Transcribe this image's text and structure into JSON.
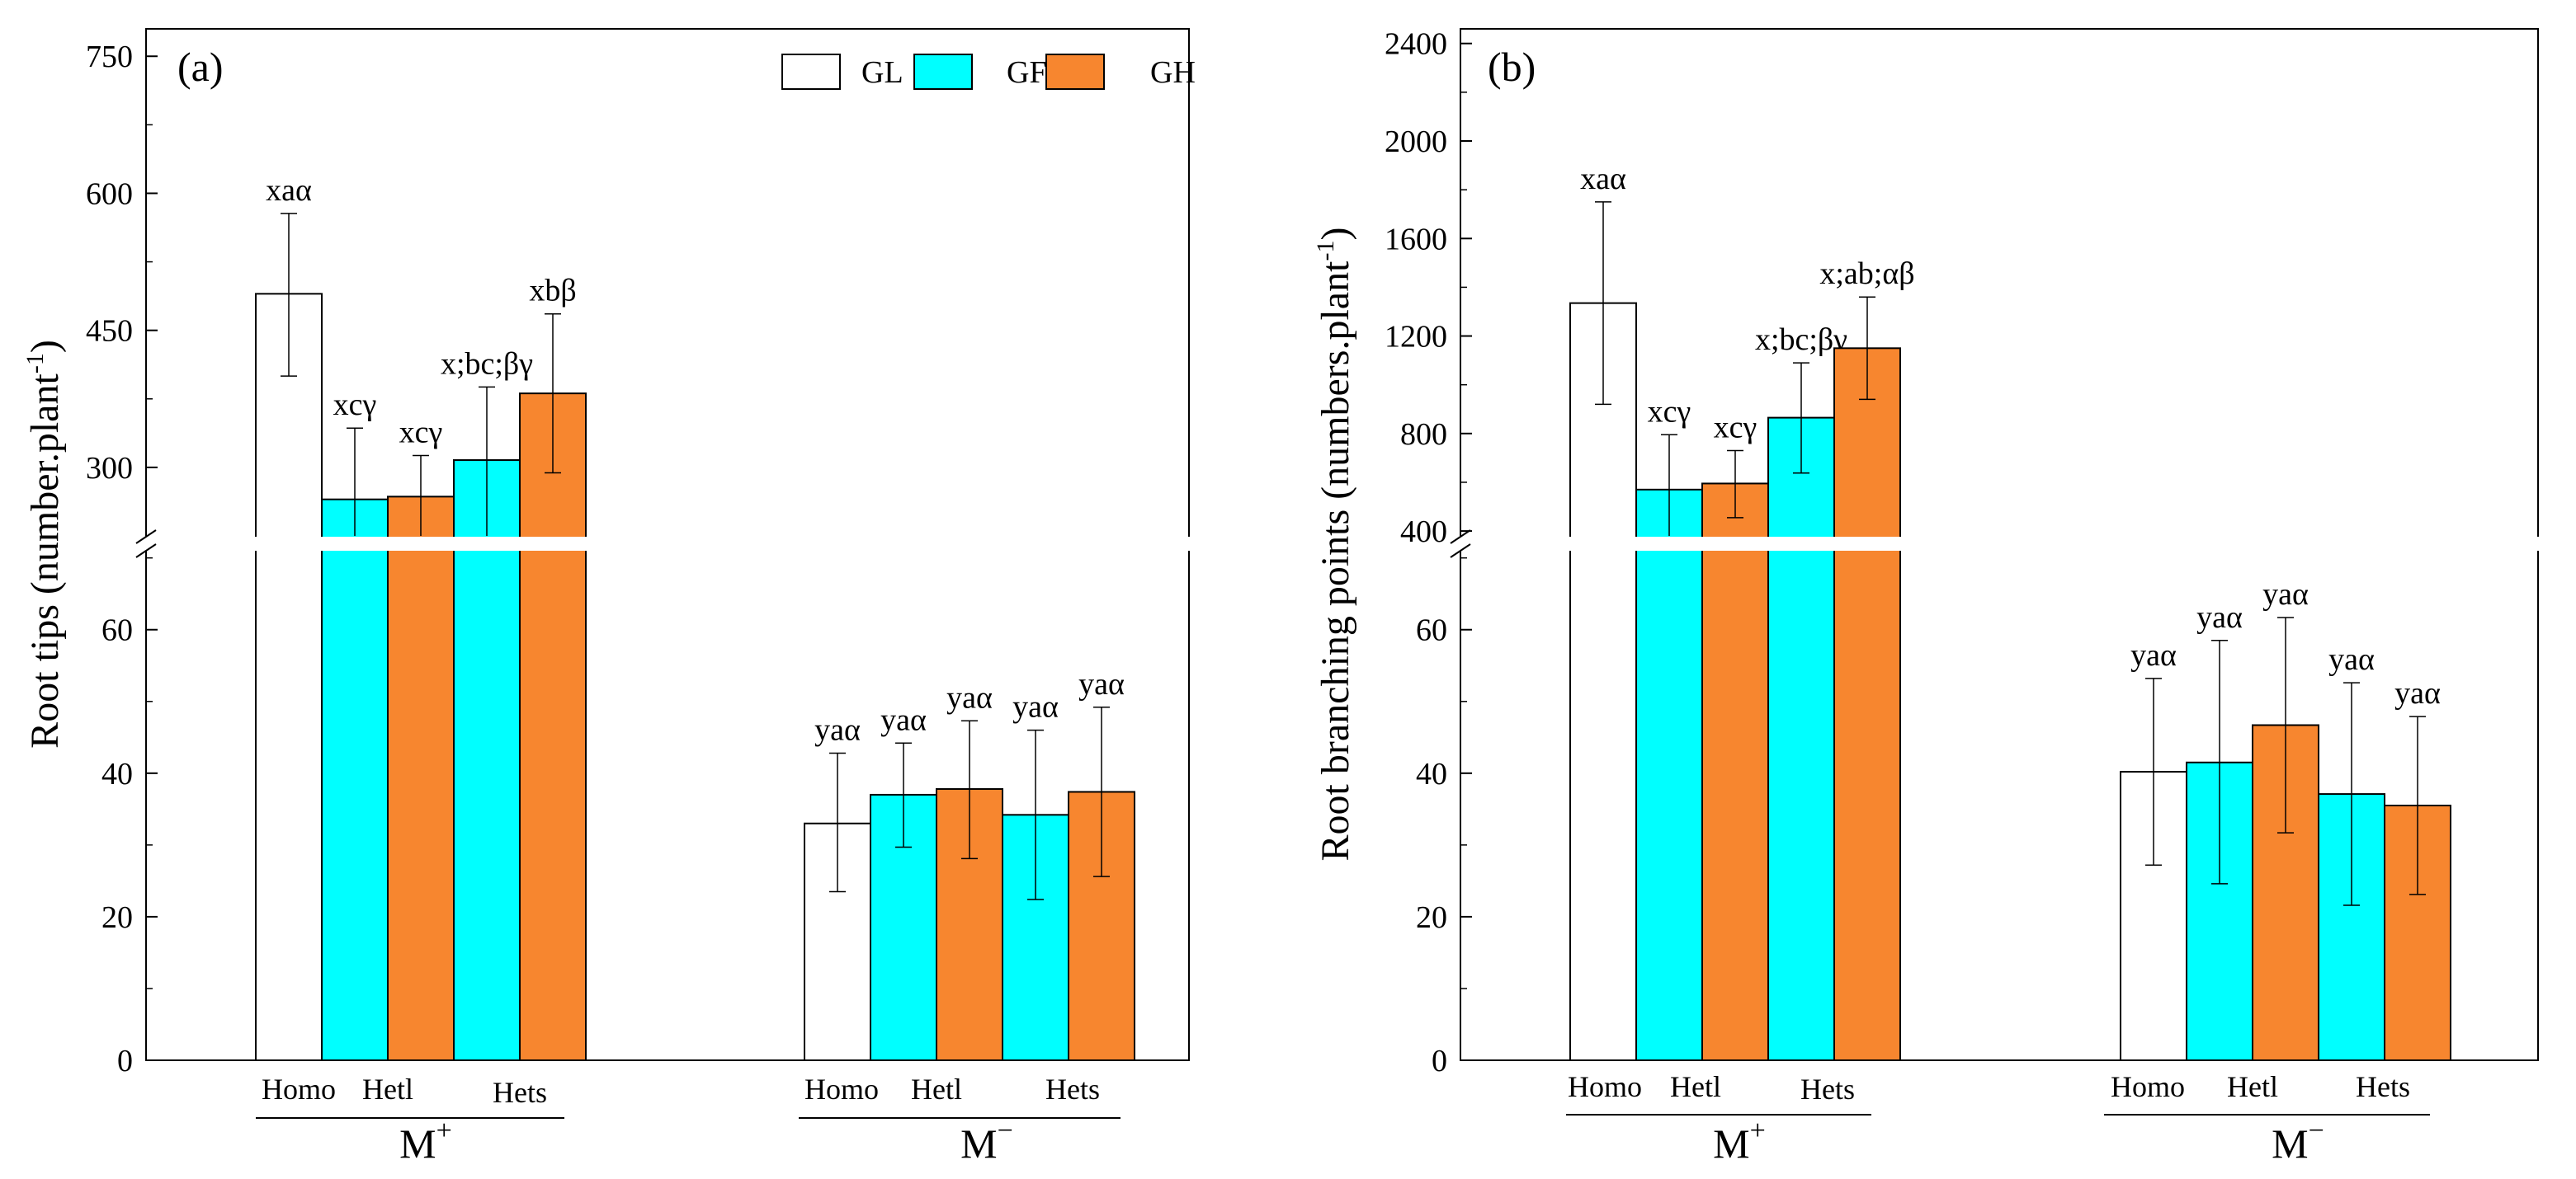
{
  "legend": [
    {
      "name": "GL",
      "color": "#ffffff"
    },
    {
      "name": "GF",
      "color": "#00ffff"
    },
    {
      "name": "GH",
      "color": "#f7862f"
    }
  ],
  "chart_data": [
    {
      "type": "bar",
      "panel_label": "(a)",
      "ylabel": "Root tips (number.plant",
      "ylabel_sup": "-1",
      "ylabel_close": ")",
      "axis_break": true,
      "upper_ylim": [
        225,
        780
      ],
      "upper_ticks": [
        "300",
        "450",
        "600",
        "750"
      ],
      "lower_ylim": [
        0,
        71
      ],
      "lower_ticks": [
        "0",
        "20",
        "40",
        "60"
      ],
      "groups": [
        {
          "name": "M",
          "sup": "+",
          "subcategories": [
            "Homo",
            "Hetl",
            "Hets"
          ]
        },
        {
          "name": "M",
          "sup": "−",
          "subcategories": [
            "Homo",
            "Hetl",
            "Hets"
          ]
        }
      ],
      "bars": [
        {
          "group": 0,
          "series": "GL",
          "value": 490,
          "err_low": 400,
          "err_high": 578,
          "label": "xaα"
        },
        {
          "group": 0,
          "series": "GF",
          "value": 265,
          "err_low": 225,
          "err_high": 343,
          "label": "xcγ"
        },
        {
          "group": 0,
          "series": "GH",
          "value": 268,
          "err_low": 225,
          "err_high": 313,
          "label": "xcγ"
        },
        {
          "group": 0,
          "series": "GF",
          "value": 308,
          "err_low": 225,
          "err_high": 388,
          "label": "x;bc;βγ"
        },
        {
          "group": 0,
          "series": "GH",
          "value": 381,
          "err_low": 294,
          "err_high": 468,
          "label": "xbβ"
        },
        {
          "group": 1,
          "series": "GL",
          "value": 33,
          "err_low": 23.5,
          "err_high": 42.8,
          "label": "yaα"
        },
        {
          "group": 1,
          "series": "GF",
          "value": 37,
          "err_low": 29.7,
          "err_high": 44.2,
          "label": "yaα"
        },
        {
          "group": 1,
          "series": "GH",
          "value": 37.8,
          "err_low": 28.1,
          "err_high": 47.3,
          "label": "yaα"
        },
        {
          "group": 1,
          "series": "GF",
          "value": 34.2,
          "err_low": 22.4,
          "err_high": 46,
          "label": "yaα"
        },
        {
          "group": 1,
          "series": "GH",
          "value": 37.4,
          "err_low": 25.6,
          "err_high": 49.2,
          "label": "yaα"
        }
      ]
    },
    {
      "type": "bar",
      "panel_label": "(b)",
      "ylabel": "Root branching points (numbers.plant",
      "ylabel_sup": "-1",
      "ylabel_close": ")",
      "axis_break": true,
      "upper_ylim": [
        380,
        2460
      ],
      "upper_ticks": [
        "400",
        "800",
        "1200",
        "1600",
        "2000",
        "2400"
      ],
      "lower_ylim": [
        0,
        71
      ],
      "lower_ticks": [
        "0",
        "20",
        "40",
        "60"
      ],
      "groups": [
        {
          "name": "M",
          "sup": "+",
          "subcategories": [
            "Homo",
            "Hetl",
            "Hets"
          ]
        },
        {
          "name": "M",
          "sup": "−",
          "subcategories": [
            "Homo",
            "Hetl",
            "Hets"
          ]
        }
      ],
      "bars": [
        {
          "group": 0,
          "series": "GL",
          "value": 1335,
          "err_low": 920,
          "err_high": 1750,
          "label": "xaα"
        },
        {
          "group": 0,
          "series": "GF",
          "value": 570,
          "err_low": 380,
          "err_high": 795,
          "label": "xcγ"
        },
        {
          "group": 0,
          "series": "GH",
          "value": 595,
          "err_low": 455,
          "err_high": 730,
          "label": "xcγ"
        },
        {
          "group": 0,
          "series": "GF",
          "value": 865,
          "err_low": 638,
          "err_high": 1090,
          "label": "x;bc;βγ"
        },
        {
          "group": 0,
          "series": "GH",
          "value": 1150,
          "err_low": 940,
          "err_high": 1360,
          "label": "x;ab;αβ"
        },
        {
          "group": 1,
          "series": "GL",
          "value": 40.2,
          "err_low": 27.2,
          "err_high": 53.2,
          "label": "yaα"
        },
        {
          "group": 1,
          "series": "GF",
          "value": 41.5,
          "err_low": 24.6,
          "err_high": 58.5,
          "label": "yaα"
        },
        {
          "group": 1,
          "series": "GH",
          "value": 46.7,
          "err_low": 31.7,
          "err_high": 61.7,
          "label": "yaα"
        },
        {
          "group": 1,
          "series": "GF",
          "value": 37.1,
          "err_low": 21.6,
          "err_high": 52.6,
          "label": "yaα"
        },
        {
          "group": 1,
          "series": "GH",
          "value": 35.5,
          "err_low": 23.1,
          "err_high": 47.9,
          "label": "yaα"
        }
      ]
    }
  ]
}
